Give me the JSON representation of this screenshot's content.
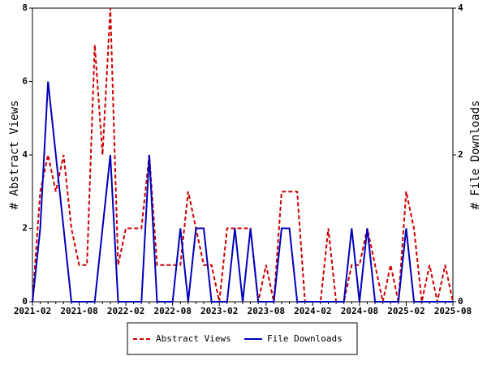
{
  "chart_data": {
    "type": "line",
    "categories": [
      "2021-02",
      null,
      null,
      null,
      null,
      null,
      "2021-08",
      null,
      null,
      null,
      null,
      null,
      "2022-02",
      null,
      null,
      null,
      null,
      null,
      "2022-08",
      null,
      null,
      null,
      null,
      null,
      "2023-02",
      null,
      null,
      null,
      null,
      null,
      "2023-08",
      null,
      null,
      null,
      null,
      null,
      "2024-02",
      null,
      null,
      null,
      null,
      null,
      "2024-08",
      null,
      null,
      null,
      null,
      null,
      "2025-02",
      null,
      null,
      null,
      null,
      null,
      "2025-08"
    ],
    "series": [
      {
        "name": "Abstract Views",
        "color": "#cc0000",
        "dash": true,
        "values": [
          0,
          3,
          4,
          3,
          4,
          2,
          1,
          1,
          7,
          4,
          8,
          1,
          2,
          2,
          2,
          4,
          1,
          1,
          1,
          1,
          3,
          2,
          1,
          1,
          0,
          2,
          2,
          2,
          2,
          0,
          1,
          0,
          3,
          3,
          3,
          0,
          0,
          0,
          2,
          0,
          0,
          1,
          1,
          2,
          1,
          0,
          1,
          0,
          3,
          2,
          0,
          1,
          0,
          1,
          0
        ]
      },
      {
        "name": "File Downloads",
        "color": "#0000bb",
        "axis": "y2",
        "values": [
          0,
          1,
          3,
          2,
          1,
          0,
          0,
          0,
          0,
          1,
          2,
          0,
          0,
          0,
          0,
          2,
          0,
          0,
          0,
          1,
          0,
          1,
          1,
          0,
          0,
          0,
          1,
          0,
          1,
          0,
          0,
          0,
          1,
          1,
          0,
          0,
          0,
          0,
          0,
          0,
          0,
          1,
          0,
          1,
          0,
          0,
          0,
          0,
          1,
          0,
          0,
          0,
          0,
          0,
          0
        ]
      }
    ],
    "ylabel": "# Abstract Views",
    "y2label": "# File Downloads",
    "ylim": [
      0,
      8
    ],
    "yticks": [
      0,
      2,
      4,
      6,
      8
    ],
    "y2lim": [
      0,
      4
    ],
    "y2ticks": [
      0,
      2,
      4
    ],
    "legend": "bottom"
  }
}
